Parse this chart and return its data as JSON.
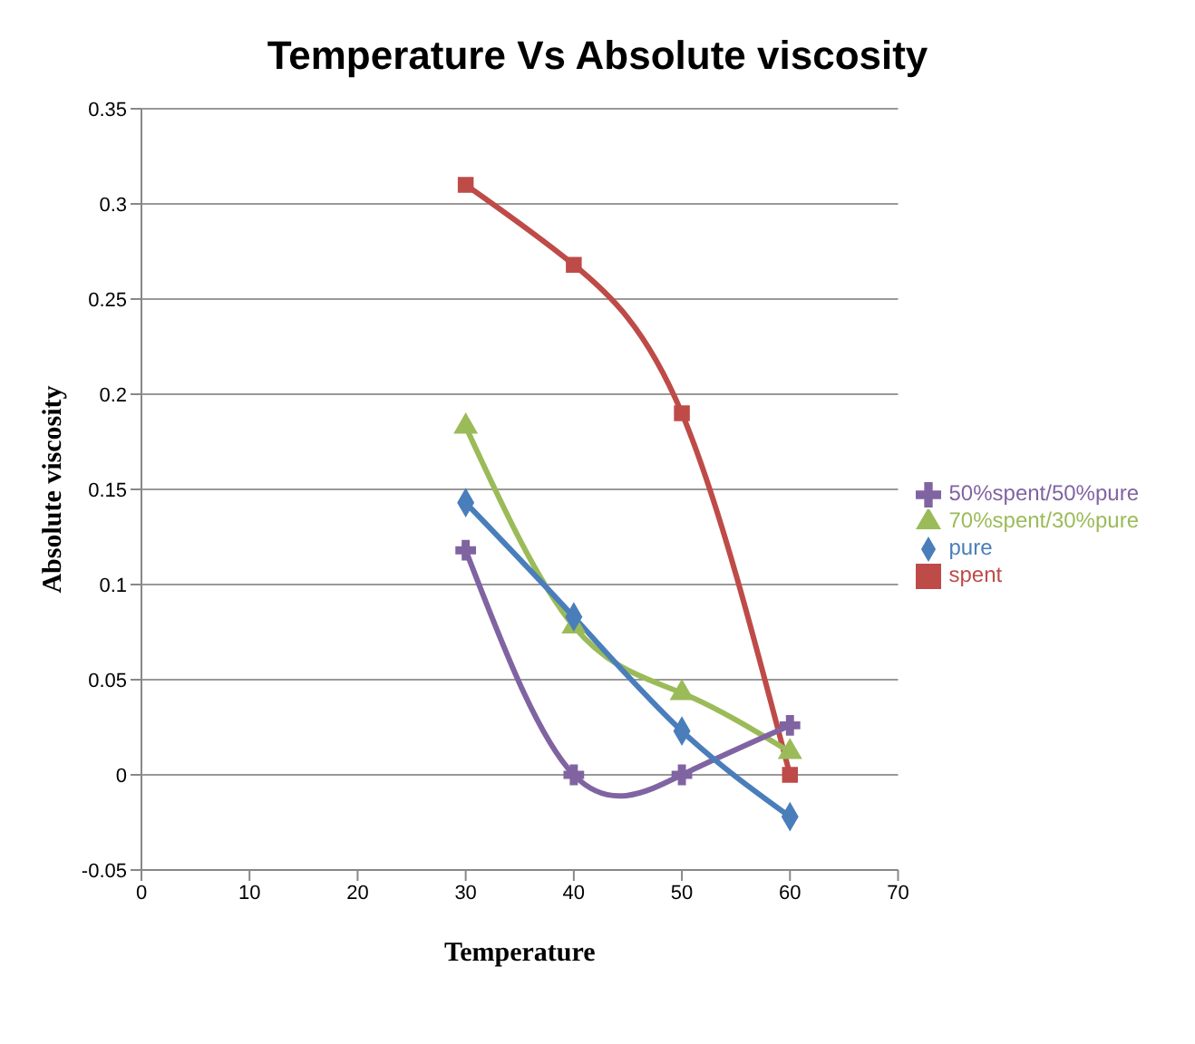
{
  "chart_data": {
    "type": "line",
    "title": "Temperature Vs Absolute viscosity",
    "xlabel": "Temperature",
    "ylabel": "Absolute viscosity",
    "x": [
      30,
      40,
      50,
      60
    ],
    "series": [
      {
        "name": "spent",
        "color": "#be4b48",
        "marker": "square",
        "values": [
          0.31,
          0.268,
          0.19,
          0
        ]
      },
      {
        "name": "70%spent/30%pure",
        "color": "#9bbb59",
        "marker": "triangle",
        "values": [
          0.183,
          0.078,
          0.043,
          0.012
        ]
      },
      {
        "name": "50%spent/50%pure",
        "color": "#8064a2",
        "marker": "cross",
        "values": [
          0.118,
          0,
          0,
          0.026
        ]
      },
      {
        "name": "pure",
        "color": "#4a7ebb",
        "marker": "diamond",
        "values": [
          0.143,
          0.083,
          0.023,
          -0.022
        ]
      }
    ],
    "xlim": [
      0,
      70
    ],
    "xticks": [
      0,
      10,
      20,
      30,
      40,
      50,
      60,
      70
    ],
    "ylim": [
      -0.05,
      0.35
    ],
    "yticks": [
      -0.05,
      0,
      0.05,
      0.1,
      0.15,
      0.2,
      0.25,
      0.3,
      0.35
    ],
    "grid": "y",
    "legend": "right"
  }
}
